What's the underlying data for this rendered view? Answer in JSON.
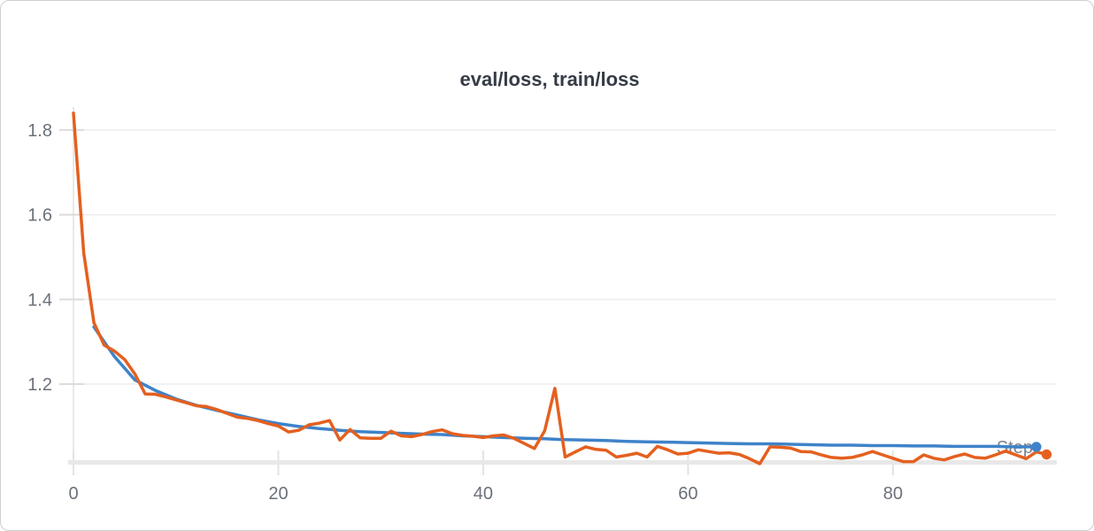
{
  "card": {
    "background": "#ffffff",
    "border_color": "#cfcfcf"
  },
  "colors": {
    "eval_loss": "#3e83c9",
    "train_loss": "#e4601f",
    "axis_text": "#6b7079",
    "title_text": "#353c46",
    "grid": "#ededed",
    "axis_bar": "#e8e8e8"
  },
  "chart_data": {
    "type": "line",
    "title": "eval/loss, train/loss",
    "xlabel": "Step",
    "ylabel": "",
    "xlim": [
      0,
      96
    ],
    "ylim": [
      1.01,
      1.854
    ],
    "grid": true,
    "legend_position": "none",
    "x_ticks": [
      {
        "value": 0,
        "label": "0"
      },
      {
        "value": 20,
        "label": "20"
      },
      {
        "value": 40,
        "label": "40"
      },
      {
        "value": 60,
        "label": "60"
      },
      {
        "value": 80,
        "label": "80"
      }
    ],
    "y_ticks": [
      {
        "value": 1.2,
        "label": "1.2"
      },
      {
        "value": 1.4,
        "label": "1.4"
      },
      {
        "value": 1.6,
        "label": "1.6"
      },
      {
        "value": 1.8,
        "label": "1.8"
      }
    ],
    "series": [
      {
        "name": "eval/loss",
        "color": "#3e83c9",
        "marker_last": true,
        "x": [
          2,
          4,
          6,
          8,
          10,
          12,
          14,
          16,
          18,
          20,
          22,
          24,
          26,
          28,
          30,
          32,
          34,
          36,
          38,
          40,
          42,
          44,
          46,
          48,
          50,
          52,
          54,
          56,
          58,
          60,
          62,
          64,
          66,
          68,
          70,
          72,
          74,
          76,
          78,
          80,
          82,
          84,
          86,
          88,
          90,
          92,
          94
        ],
        "values": [
          1.335,
          1.265,
          1.21,
          1.185,
          1.165,
          1.15,
          1.138,
          1.127,
          1.116,
          1.107,
          1.1,
          1.095,
          1.091,
          1.088,
          1.086,
          1.084,
          1.082,
          1.081,
          1.078,
          1.076,
          1.074,
          1.072,
          1.071,
          1.069,
          1.068,
          1.067,
          1.065,
          1.064,
          1.063,
          1.062,
          1.061,
          1.06,
          1.059,
          1.059,
          1.058,
          1.057,
          1.056,
          1.056,
          1.055,
          1.055,
          1.054,
          1.054,
          1.053,
          1.053,
          1.053,
          1.052,
          1.052
        ]
      },
      {
        "name": "train/loss",
        "color": "#e4601f",
        "marker_last": true,
        "x": [
          0,
          1,
          2,
          3,
          4,
          5,
          6,
          7,
          8,
          9,
          10,
          11,
          12,
          13,
          14,
          15,
          16,
          17,
          18,
          19,
          20,
          21,
          22,
          23,
          24,
          25,
          26,
          27,
          28,
          29,
          30,
          31,
          32,
          33,
          34,
          35,
          36,
          37,
          38,
          39,
          40,
          41,
          42,
          43,
          44,
          45,
          46,
          47,
          48,
          49,
          50,
          51,
          52,
          53,
          54,
          55,
          56,
          57,
          58,
          59,
          60,
          61,
          62,
          63,
          64,
          65,
          66,
          67,
          68,
          69,
          70,
          71,
          72,
          73,
          74,
          75,
          76,
          77,
          78,
          79,
          80,
          81,
          82,
          83,
          84,
          85,
          86,
          87,
          88,
          89,
          90,
          91,
          92,
          93,
          94,
          95
        ],
        "values": [
          1.84,
          1.51,
          1.345,
          1.292,
          1.278,
          1.258,
          1.224,
          1.177,
          1.176,
          1.17,
          1.163,
          1.156,
          1.149,
          1.147,
          1.14,
          1.131,
          1.122,
          1.119,
          1.114,
          1.107,
          1.101,
          1.087,
          1.091,
          1.104,
          1.108,
          1.114,
          1.068,
          1.093,
          1.073,
          1.072,
          1.072,
          1.089,
          1.078,
          1.076,
          1.081,
          1.088,
          1.092,
          1.083,
          1.079,
          1.077,
          1.074,
          1.078,
          1.08,
          1.072,
          1.06,
          1.048,
          1.09,
          1.19,
          1.028,
          1.04,
          1.052,
          1.046,
          1.044,
          1.028,
          1.032,
          1.037,
          1.028,
          1.053,
          1.045,
          1.035,
          1.037,
          1.045,
          1.041,
          1.037,
          1.038,
          1.034,
          1.024,
          1.012,
          1.052,
          1.051,
          1.049,
          1.041,
          1.04,
          1.033,
          1.027,
          1.025,
          1.027,
          1.033,
          1.041,
          1.033,
          1.025,
          1.017,
          1.017,
          1.033,
          1.025,
          1.021,
          1.029,
          1.035,
          1.027,
          1.025,
          1.033,
          1.042,
          1.033,
          1.024,
          1.04,
          1.034
        ]
      }
    ]
  }
}
